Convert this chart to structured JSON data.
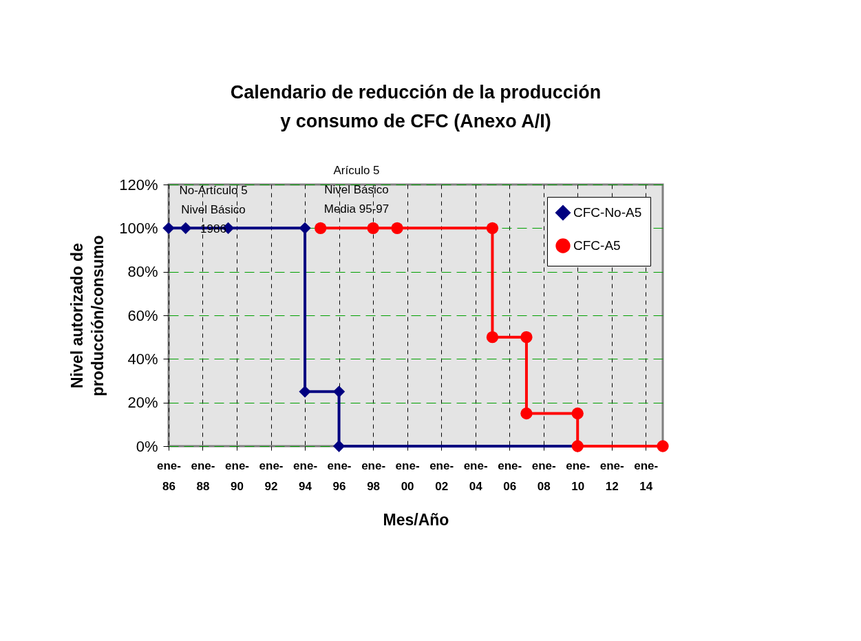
{
  "chart_data": {
    "type": "line",
    "title": "Calendario de reducción de la producción\ny consumo de CFC (Anexo A/I)",
    "xlabel": "Mes/Año",
    "ylabel": "Nivel autorizado de\nproducción/consumo",
    "xlim": [
      "1986-01",
      "2015-01"
    ],
    "xticks": [
      {
        "value": "1986-01",
        "label": "ene-86"
      },
      {
        "value": "1988-01",
        "label": "ene-88"
      },
      {
        "value": "1990-01",
        "label": "ene-90"
      },
      {
        "value": "1992-01",
        "label": "ene-92"
      },
      {
        "value": "1994-01",
        "label": "ene-94"
      },
      {
        "value": "1996-01",
        "label": "ene-96"
      },
      {
        "value": "1998-01",
        "label": "ene-98"
      },
      {
        "value": "2000-01",
        "label": "ene-00"
      },
      {
        "value": "2002-01",
        "label": "ene-02"
      },
      {
        "value": "2004-01",
        "label": "ene-04"
      },
      {
        "value": "2006-01",
        "label": "ene-06"
      },
      {
        "value": "2008-01",
        "label": "ene-08"
      },
      {
        "value": "2010-01",
        "label": "ene-10"
      },
      {
        "value": "2012-01",
        "label": "ene-12"
      },
      {
        "value": "2014-01",
        "label": "ene-14"
      }
    ],
    "ylim": [
      0,
      120
    ],
    "yticks": [
      {
        "value": 0,
        "label": "0%"
      },
      {
        "value": 20,
        "label": "20%"
      },
      {
        "value": 40,
        "label": "40%"
      },
      {
        "value": 60,
        "label": "60%"
      },
      {
        "value": 80,
        "label": "80%"
      },
      {
        "value": 100,
        "label": "100%"
      },
      {
        "value": 120,
        "label": "120%"
      }
    ],
    "grid": true,
    "legend": "top right",
    "series": [
      {
        "name": "CFC-No-A5",
        "color": "#000080",
        "marker": "diamond",
        "x": [
          "1986-01",
          "1987-01",
          "1989-07",
          "1994-01",
          "1994-01",
          "1996-01",
          "1996-01",
          "2010-01"
        ],
        "values": [
          100,
          100,
          100,
          100,
          25,
          25,
          0,
          0
        ]
      },
      {
        "name": "CFC-A5",
        "color": "#ff0000",
        "marker": "circle",
        "x": [
          "1994-12",
          "1998-01",
          "1999-06",
          "2005-01",
          "2005-01",
          "2007-01",
          "2007-01",
          "2010-01",
          "2010-01",
          "2015-01"
        ],
        "values": [
          100,
          100,
          100,
          100,
          50,
          50,
          15,
          15,
          0,
          0
        ]
      }
    ],
    "annotations": [
      "No-Artículo 5\nNivel Básico\n1986",
      "Arículo 5\nNivel Básico\nMedia 95-97"
    ]
  }
}
